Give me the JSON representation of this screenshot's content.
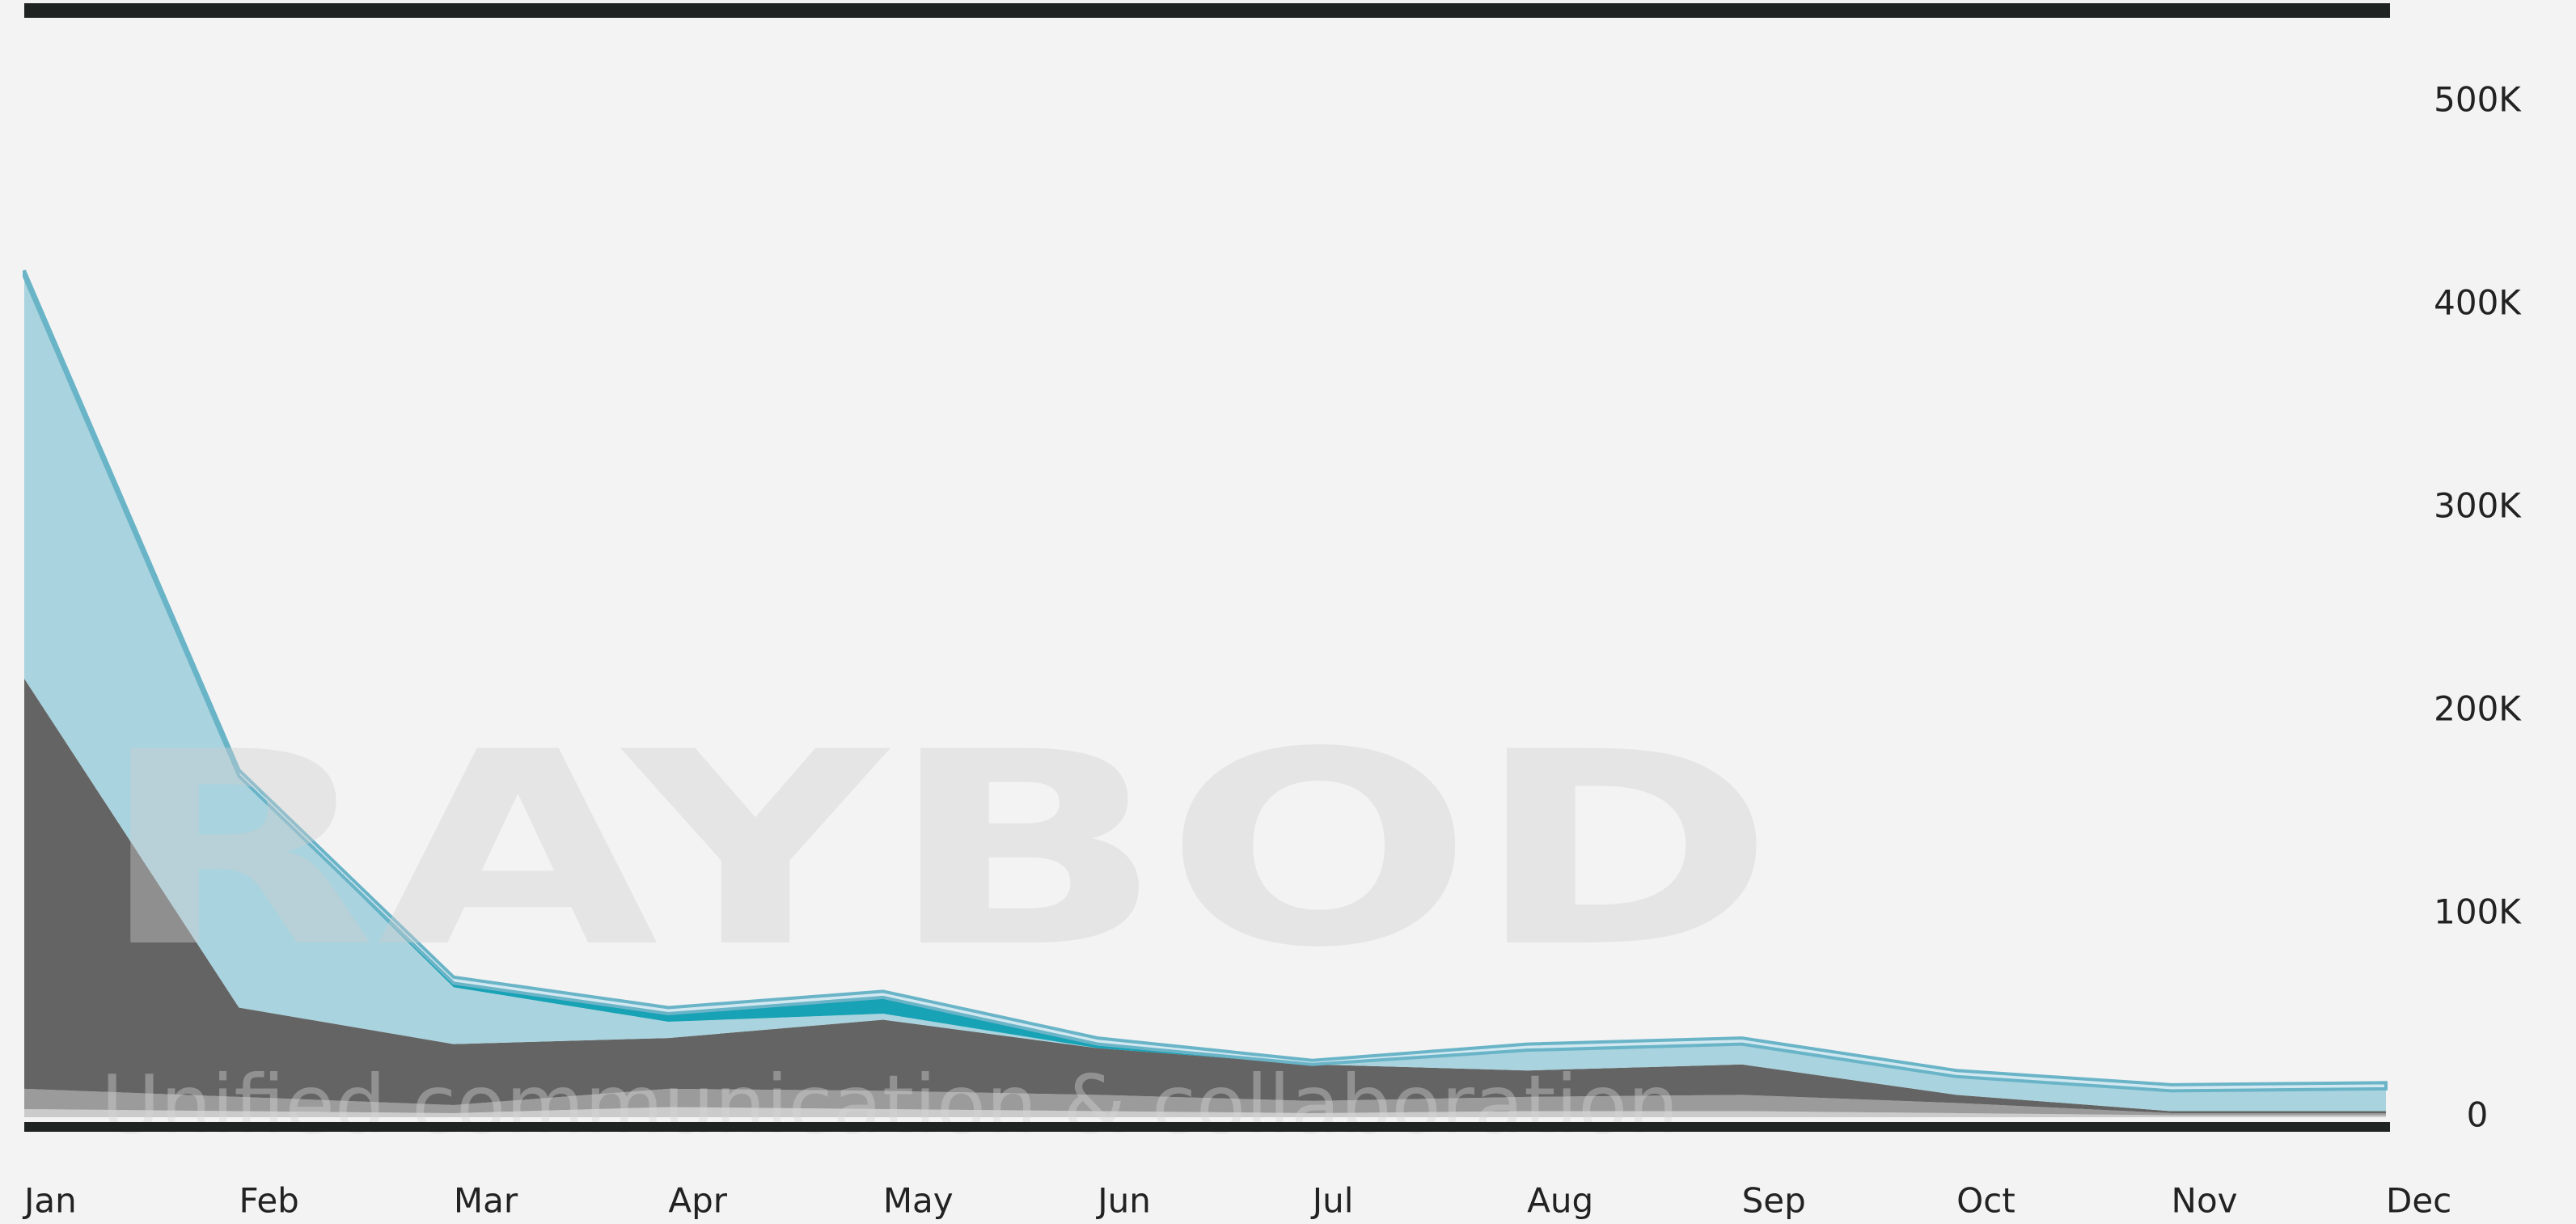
{
  "chart_data": {
    "type": "stacked-area",
    "watermark": "RAYBOD",
    "watermark_subtitle": "Unified communication & collaboration",
    "categories": [
      "Jan",
      "Feb",
      "Mar",
      "Apr",
      "May",
      "Jun",
      "Jul",
      "Aug",
      "Sep",
      "Oct",
      "Nov",
      "Dec"
    ],
    "series": [
      {
        "color": "#cbcbcb",
        "values": [
          4000,
          3000,
          2000,
          5000,
          4000,
          3000,
          2000,
          3000,
          3000,
          2000,
          1000,
          1000
        ]
      },
      {
        "color": "#9b9b9b",
        "values": [
          10000,
          7000,
          4000,
          9000,
          9000,
          8000,
          6000,
          7000,
          8000,
          5000,
          1000,
          1000
        ]
      },
      {
        "color": "#646464",
        "values": [
          202000,
          44000,
          30000,
          25000,
          35000,
          23000,
          18000,
          13000,
          15000,
          4000,
          1000,
          1000
        ]
      },
      {
        "color": "#a9d3de",
        "values": [
          198000,
          114000,
          28000,
          8000,
          3000,
          0,
          0,
          10000,
          10000,
          9000,
          10000,
          11000
        ]
      },
      {
        "color": "#17a2b5",
        "values": [
          0,
          0,
          2000,
          4000,
          8000,
          2000,
          0,
          0,
          0,
          0,
          0,
          0
        ]
      },
      {
        "color": "#d2e8f0",
        "values": [
          3000,
          3000,
          3000,
          3000,
          3000,
          3000,
          2000,
          3000,
          3000,
          3000,
          3000,
          3000
        ]
      }
    ],
    "ylim": [
      0,
      500000
    ],
    "yticks": [
      0,
      {
        "value": 100000,
        "label": "100K"
      },
      {
        "value": 200000,
        "label": "200K"
      },
      {
        "value": 300000,
        "label": "300K"
      },
      {
        "value": 400000,
        "label": "400K"
      },
      {
        "value": 500000,
        "label": "500K"
      }
    ]
  }
}
